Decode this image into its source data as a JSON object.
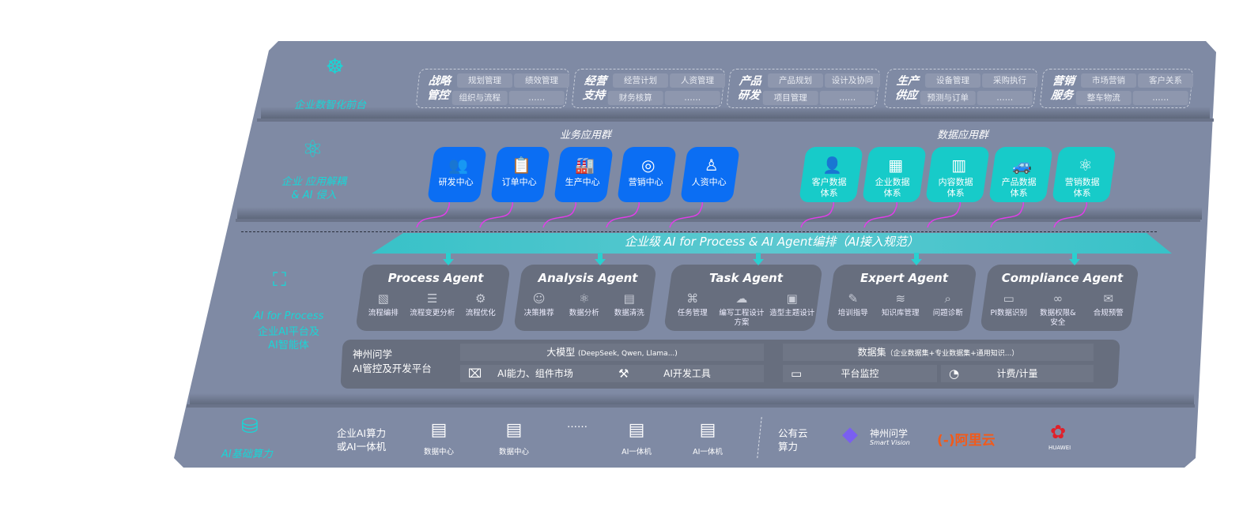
{
  "colors": {
    "panel": "#7f8aa4",
    "accent_cyan": "#19d6d6",
    "business_blue": "#0b6ef3",
    "data_teal": "#17cbc9",
    "arrow_magenta": "#e03ee8",
    "agent_card": "#676e7e"
  },
  "layer1": {
    "label": "企业数智化前台",
    "icon": "brain-icon",
    "groups": [
      {
        "title": "战略管控",
        "items": [
          "规划管理",
          "绩效管理",
          "组织与流程",
          "……"
        ]
      },
      {
        "title": "经营支持",
        "items": [
          "经营计划",
          "人资管理",
          "财务核算",
          "……"
        ]
      },
      {
        "title": "产品研发",
        "items": [
          "产品规划",
          "设计及协同",
          "项目管理",
          "……"
        ]
      },
      {
        "title": "生产供应",
        "items": [
          "设备管理",
          "采购执行",
          "预测与订单",
          "……"
        ]
      },
      {
        "title": "营销服务",
        "items": [
          "市场营销",
          "客户关系",
          "整车物流",
          "……"
        ]
      }
    ]
  },
  "layer2": {
    "label": "企业 应用解耦\n& AI 侵入",
    "icon": "molecule-icon",
    "business_title": "业务应用群",
    "business_apps": [
      {
        "label": "研发中心",
        "icon": "users-icon"
      },
      {
        "label": "订单中心",
        "icon": "clipboard-icon"
      },
      {
        "label": "生产中心",
        "icon": "factory-icon"
      },
      {
        "label": "营销中心",
        "icon": "target-icon"
      },
      {
        "label": "人资中心",
        "icon": "person-icon"
      }
    ],
    "data_title": "数据应用群",
    "data_apps": [
      {
        "label": "客户数据\n体系",
        "icon": "user-icon"
      },
      {
        "label": "企业数据\n体系",
        "icon": "building-icon"
      },
      {
        "label": "内容数据\n体系",
        "icon": "books-icon"
      },
      {
        "label": "产品数据\n体系",
        "icon": "car-icon"
      },
      {
        "label": "营销数据\n体系",
        "icon": "atom-icon"
      }
    ]
  },
  "layer3": {
    "label_en": "AI for Process",
    "label_cn": "企业AI平台及\nAI智能体",
    "icon": "face-scan-icon",
    "banner": "企业级 AI for Process & AI Agent编排（AI接入规范）",
    "agents": [
      {
        "name": "Process Agent",
        "features": [
          {
            "label": "流程编排",
            "icon": "chart-window-icon"
          },
          {
            "label": "流程变更分析",
            "icon": "list-icon"
          },
          {
            "label": "流程优化",
            "icon": "optimize-icon"
          }
        ]
      },
      {
        "name": "Analysis Agent",
        "features": [
          {
            "label": "决策推荐",
            "icon": "head-icon"
          },
          {
            "label": "数据分析",
            "icon": "gear-atom-icon"
          },
          {
            "label": "数据清洗",
            "icon": "clean-icon"
          }
        ]
      },
      {
        "name": "Task Agent",
        "features": [
          {
            "label": "任务管理",
            "icon": "network-icon"
          },
          {
            "label": "编写工程设计方案",
            "icon": "cloud-icon"
          },
          {
            "label": "造型主题设计",
            "icon": "design-doc-icon"
          }
        ]
      },
      {
        "name": "Expert Agent",
        "features": [
          {
            "label": "培训指导",
            "icon": "training-icon"
          },
          {
            "label": "知识库管理",
            "icon": "layers-icon"
          },
          {
            "label": "问题诊断",
            "icon": "diagnosis-icon"
          }
        ]
      },
      {
        "name": "Compliance Agent",
        "features": [
          {
            "label": "PI数据识别",
            "icon": "id-card-icon"
          },
          {
            "label": "数据权限&\n安全",
            "icon": "link-icon"
          },
          {
            "label": "合规预警",
            "icon": "alert-mail-icon"
          }
        ]
      }
    ],
    "platform": {
      "title": "神州问学\nAI管控及开发平台",
      "llm": "大模型",
      "llm_note": "(DeepSeek, Qwen, Llama...)",
      "dataset": "数据集",
      "dataset_note": "（企业数据集+专业数据集+通用知识...）",
      "tools": [
        {
          "label": "AI能力、组件市场",
          "icon": "market-icon"
        },
        {
          "label": "AI开发工具",
          "icon": "dev-tool-icon"
        },
        {
          "label": "平台监控",
          "icon": "monitor-icon"
        },
        {
          "label": "计费/计量",
          "icon": "gauge-icon"
        }
      ]
    }
  },
  "layer4": {
    "label": "AI基础算力",
    "icon": "database-icon",
    "enterprise": "企业AI算力\n或AI一体机",
    "servers": [
      {
        "label": "数据中心"
      },
      {
        "label": "数据中心"
      },
      {
        "label": "……"
      },
      {
        "label": "AI一体机"
      },
      {
        "label": "AI一体机"
      }
    ],
    "public": "公有云\n算力",
    "vendors": [
      {
        "name": "神州问学",
        "sub": "Smart Vision"
      },
      {
        "name": "阿里云"
      },
      {
        "name": "HUAWEI"
      }
    ]
  }
}
